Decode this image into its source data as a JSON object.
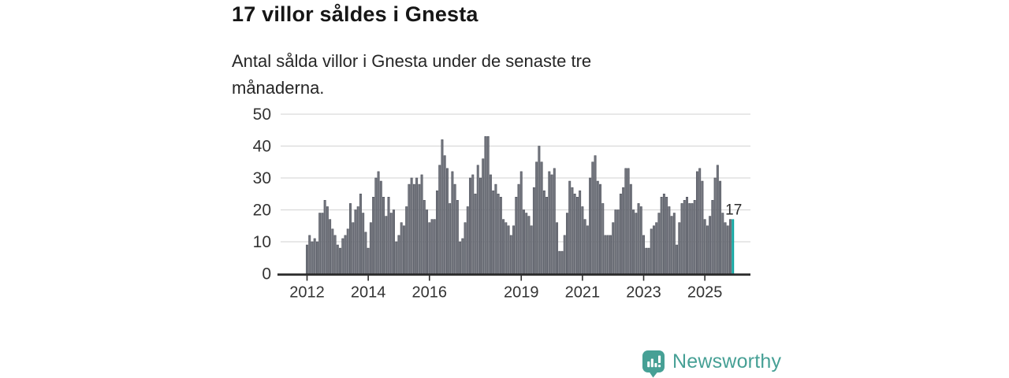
{
  "header": {
    "title": "17 villor såldes i Gnesta",
    "subtitle": "Antal sålda villor i Gnesta under de senaste tre månaderna."
  },
  "footer": {
    "brand": "Newsworthy",
    "logo_icon": "newsworthy-speech-bubble-bars-icon"
  },
  "colors": {
    "bar": "#74777f",
    "bar_stroke": "#4e515b",
    "highlight": "#0fa5a0",
    "grid": "#d9d9d9",
    "axis": "#2d2d2d",
    "text": "#333333",
    "brand": "#46a095"
  },
  "chart_data": {
    "type": "bar",
    "title": "17 villor såldes i Gnesta",
    "subtitle": "Antal sålda villor i Gnesta under de senaste tre månaderna.",
    "unit": "sålda villor (rullande tre månader)",
    "frequency": "monthly",
    "x_start": "2012-01",
    "values": [
      9,
      12,
      10,
      11,
      10,
      19,
      19,
      23,
      21,
      17,
      14,
      12,
      9,
      8,
      11,
      12,
      14,
      22,
      16,
      20,
      21,
      25,
      19,
      13,
      8,
      16,
      24,
      30,
      32,
      29,
      24,
      18,
      24,
      19,
      20,
      10,
      12,
      16,
      15,
      21,
      28,
      30,
      28,
      30,
      28,
      31,
      23,
      20,
      16,
      17,
      17,
      26,
      34,
      42,
      37,
      33,
      22,
      32,
      28,
      23,
      10,
      11,
      16,
      21,
      30,
      31,
      25,
      34,
      30,
      36,
      43,
      43,
      31,
      26,
      28,
      25,
      24,
      17,
      16,
      15,
      12,
      15,
      24,
      28,
      32,
      20,
      19,
      18,
      15,
      27,
      35,
      40,
      35,
      26,
      24,
      32,
      31,
      33,
      16,
      7,
      7,
      12,
      19,
      29,
      27,
      25,
      24,
      26,
      21,
      17,
      15,
      30,
      35,
      37,
      29,
      28,
      22,
      12,
      12,
      12,
      16,
      20,
      20,
      25,
      27,
      33,
      33,
      28,
      20,
      19,
      22,
      21,
      12,
      8,
      8,
      14,
      15,
      16,
      19,
      24,
      25,
      24,
      21,
      18,
      19,
      9,
      16,
      22,
      23,
      24,
      22,
      22,
      23,
      32,
      33,
      29,
      17,
      15,
      18,
      23,
      30,
      34,
      29,
      19,
      16,
      15,
      17,
      17
    ],
    "highlight_index": 167,
    "highlight_label": "17",
    "ylim": [
      0,
      50
    ],
    "yticks": [
      0,
      10,
      20,
      30,
      40,
      50
    ],
    "xticks": [
      {
        "label": "2012",
        "month": 0
      },
      {
        "label": "2014",
        "month": 24
      },
      {
        "label": "2016",
        "month": 48
      },
      {
        "label": "2019",
        "month": 84
      },
      {
        "label": "2021",
        "month": 108
      },
      {
        "label": "2023",
        "month": 132
      },
      {
        "label": "2025",
        "month": 156
      }
    ],
    "grid": "horizontal",
    "legend": "none"
  }
}
